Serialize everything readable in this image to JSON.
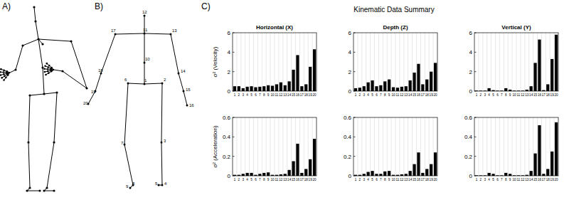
{
  "panel_labels": [
    "A)",
    "B)",
    "C)"
  ],
  "header": {
    "title": "Kinematic Data Summary"
  },
  "diagram": {
    "nodes": [
      {
        "label": "1"
      },
      {
        "label": "2"
      },
      {
        "label": "3"
      },
      {
        "label": "4"
      },
      {
        "label": "5"
      },
      {
        "label": "6"
      },
      {
        "label": "7"
      },
      {
        "label": "8"
      },
      {
        "label": "9"
      },
      {
        "label": "10"
      },
      {
        "label": "11"
      },
      {
        "label": "12"
      },
      {
        "label": "13"
      },
      {
        "label": "14"
      },
      {
        "label": "15"
      },
      {
        "label": "16"
      },
      {
        "label": "17"
      },
      {
        "label": "18"
      },
      {
        "label": "19"
      },
      {
        "label": "20"
      }
    ]
  },
  "chart_data": [
    {
      "type": "bar",
      "title": "Horizontal (X)",
      "y_label": "σ² (Velocity)",
      "categories": [
        "1",
        "2",
        "3",
        "4",
        "5",
        "6",
        "7",
        "8",
        "9",
        "10",
        "11",
        "12",
        "13",
        "14",
        "15",
        "16",
        "17",
        "18",
        "19",
        "20"
      ],
      "values": [
        0.5,
        0.5,
        0.3,
        0.45,
        0.5,
        0.4,
        0.45,
        0.5,
        0.6,
        0.55,
        0.7,
        0.9,
        0.6,
        1.0,
        2.2,
        3.7,
        0.5,
        0.7,
        2.5,
        4.3
      ],
      "color": "#000000",
      "ylim": [
        0,
        6
      ],
      "yticks": [
        0,
        2,
        4,
        6
      ],
      "grid": true
    },
    {
      "type": "bar",
      "title": "Depth (Z)",
      "categories": [
        "1",
        "2",
        "3",
        "4",
        "5",
        "6",
        "7",
        "8",
        "9",
        "10",
        "11",
        "12",
        "13",
        "14",
        "15",
        "16",
        "17",
        "18",
        "19",
        "20"
      ],
      "values": [
        0.3,
        0.35,
        0.5,
        0.9,
        1.1,
        0.5,
        0.6,
        1.0,
        1.2,
        0.4,
        0.35,
        0.45,
        0.5,
        1.1,
        1.9,
        2.8,
        0.7,
        1.2,
        2.0,
        2.9
      ],
      "color": "#000000",
      "ylim": [
        0,
        6
      ],
      "yticks": [
        0,
        2,
        4,
        6
      ],
      "grid": true
    },
    {
      "type": "bar",
      "title": "Vertical (Y)",
      "categories": [
        "1",
        "2",
        "3",
        "4",
        "5",
        "6",
        "7",
        "8",
        "9",
        "10",
        "11",
        "12",
        "13",
        "14",
        "15",
        "16",
        "17",
        "18",
        "19",
        "20"
      ],
      "values": [
        0.05,
        0.05,
        0.05,
        0.3,
        0.1,
        0.05,
        0.05,
        0.3,
        0.15,
        0.05,
        0.05,
        0.05,
        0.15,
        0.5,
        2.9,
        5.3,
        0.1,
        0.7,
        3.3,
        5.8
      ],
      "color": "#000000",
      "ylim": [
        0,
        6
      ],
      "yticks": [
        0,
        2,
        4,
        6
      ],
      "grid": true
    },
    {
      "type": "bar",
      "y_label": "σ² (Acceleration)",
      "categories": [
        "1",
        "2",
        "3",
        "4",
        "5",
        "6",
        "7",
        "8",
        "9",
        "10",
        "11",
        "12",
        "13",
        "14",
        "15",
        "16",
        "17",
        "18",
        "19",
        "20"
      ],
      "values": [
        0.01,
        0.01,
        0.02,
        0.03,
        0.03,
        0.01,
        0.02,
        0.03,
        0.035,
        0.01,
        0.01,
        0.015,
        0.02,
        0.06,
        0.15,
        0.33,
        0.03,
        0.07,
        0.17,
        0.38
      ],
      "color": "#000000",
      "ylim": [
        0,
        0.6
      ],
      "yticks": [
        0,
        0.2,
        0.4,
        0.6
      ],
      "grid": true
    },
    {
      "type": "bar",
      "categories": [
        "1",
        "2",
        "3",
        "4",
        "5",
        "6",
        "7",
        "8",
        "9",
        "10",
        "11",
        "12",
        "13",
        "14",
        "15",
        "16",
        "17",
        "18",
        "19",
        "20"
      ],
      "values": [
        0.01,
        0.01,
        0.02,
        0.04,
        0.05,
        0.02,
        0.02,
        0.045,
        0.05,
        0.01,
        0.01,
        0.015,
        0.02,
        0.05,
        0.12,
        0.24,
        0.03,
        0.07,
        0.12,
        0.24
      ],
      "color": "#000000",
      "ylim": [
        0,
        0.6
      ],
      "yticks": [
        0,
        0.2,
        0.4,
        0.6
      ],
      "grid": true
    },
    {
      "type": "bar",
      "categories": [
        "1",
        "2",
        "3",
        "4",
        "5",
        "6",
        "7",
        "8",
        "9",
        "10",
        "11",
        "12",
        "13",
        "14",
        "15",
        "16",
        "17",
        "18",
        "19",
        "20"
      ],
      "values": [
        0.005,
        0.005,
        0.005,
        0.03,
        0.02,
        0.005,
        0.005,
        0.03,
        0.02,
        0.005,
        0.005,
        0.005,
        0.01,
        0.05,
        0.23,
        0.52,
        0.02,
        0.07,
        0.25,
        0.55
      ],
      "color": "#000000",
      "ylim": [
        0,
        0.6
      ],
      "yticks": [
        0,
        0.2,
        0.4,
        0.6
      ],
      "grid": true
    }
  ]
}
